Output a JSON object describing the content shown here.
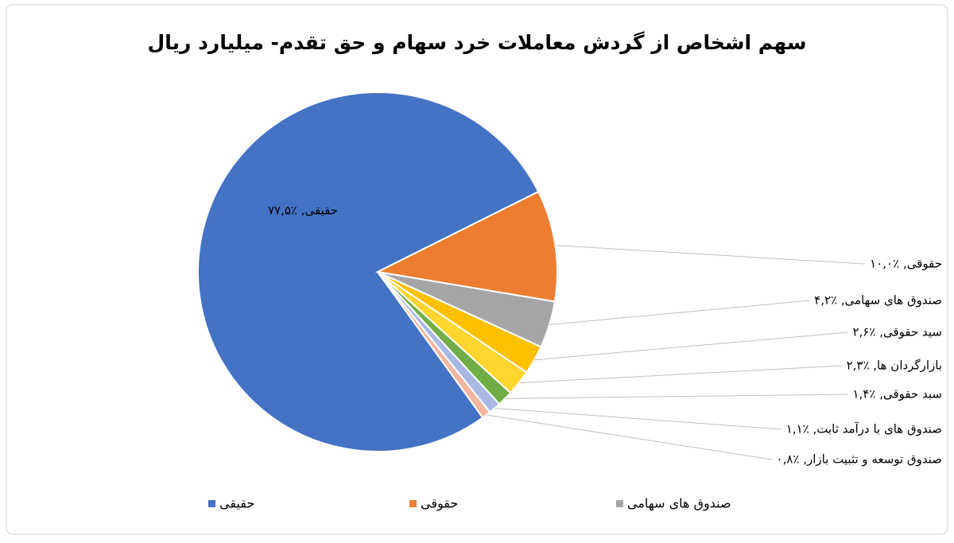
{
  "chart_data": {
    "type": "pie",
    "title": "سهم اشخاص از گردش معاملات خرد سهام و حق تقدم- میلیارد ریال",
    "values": [
      77.5,
      10.0,
      4.2,
      2.6,
      2.3,
      1.4,
      1.1,
      0.8
    ],
    "value_labels": [
      "حقیقی, ٪۷۷,۵",
      "حقوقی, ٪۱۰,۰",
      "صندوق های سهامی, ٪۴,۲",
      "سید حقوقی, ٪۲,۶",
      "بازارگردان ها, ٪۲,۳",
      "سبد حقوقی, ٪۱,۴",
      "صندوق های با درآمد ثابت, ٪۱,۱",
      "صندوق توسعه و تثبیت بازار, ٪۰,۸"
    ],
    "colors": [
      "#4472c4",
      "#ed7d31",
      "#a5a5a5",
      "#ffc000",
      "#ffd52e",
      "#70ad47",
      "#a9b8e3",
      "#f4b6a0"
    ],
    "legend": [
      "حقیقی",
      "حقوقی",
      "صندوق های سهامی"
    ]
  }
}
